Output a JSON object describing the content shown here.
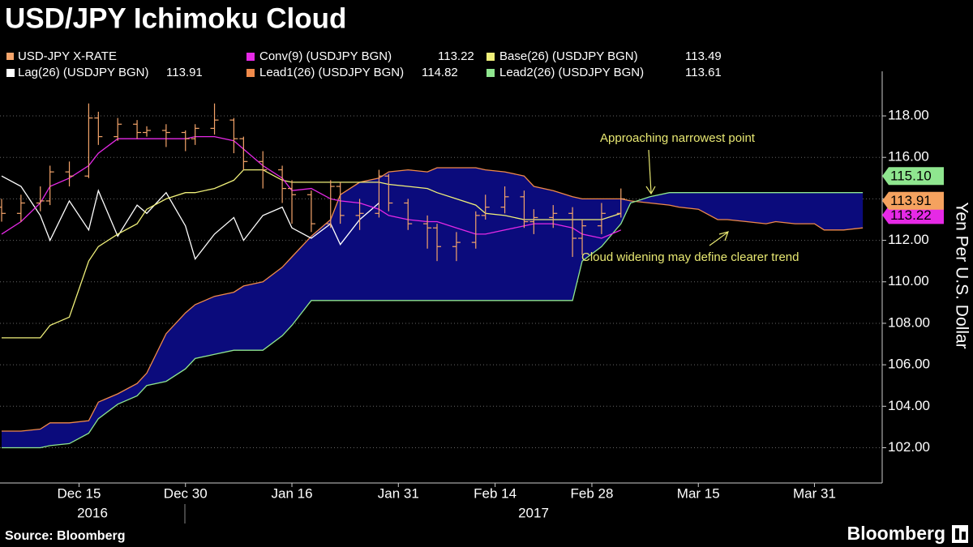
{
  "chart_data": {
    "type": "ohlc",
    "title": "USD/JPY Ichimoku Cloud",
    "y_label": "Yen Per U.S. Dollar",
    "source": "Source: Bloomberg",
    "brand": "Bloomberg",
    "x_group_labels": [
      "2016",
      "2017"
    ],
    "annotations": [
      "Approaching narrowest point",
      "Cloud widening may define clearer trend"
    ],
    "annotation_color": "#e8e872",
    "cloud_color": "#0b0b7c",
    "grid": true,
    "xlim": [
      "2016-12-05",
      "2017-04-11"
    ],
    "xticks": [
      {
        "value": "2016-12-15",
        "label": "Dec 15"
      },
      {
        "value": "2016-12-30",
        "label": "Dec 30"
      },
      {
        "value": "2017-01-16",
        "label": "Jan 16"
      },
      {
        "value": "2017-01-31",
        "label": "Jan 31"
      },
      {
        "value": "2017-02-14",
        "label": "Feb 14"
      },
      {
        "value": "2017-02-28",
        "label": "Feb 28"
      },
      {
        "value": "2017-03-15",
        "label": "Mar 15"
      },
      {
        "value": "2017-03-31",
        "label": "Mar 31"
      }
    ],
    "ylim": [
      100.3,
      120.15
    ],
    "yticks": [
      {
        "value": 102,
        "label": "102.00"
      },
      {
        "value": 104,
        "label": "104.00"
      },
      {
        "value": 106,
        "label": "106.00"
      },
      {
        "value": 108,
        "label": "108.00"
      },
      {
        "value": 110,
        "label": "110.00"
      },
      {
        "value": 112,
        "label": "112.00"
      },
      {
        "value": 114,
        "label": "114.00"
      },
      {
        "value": 116,
        "label": "116.00"
      },
      {
        "value": 118,
        "label": "118.00"
      }
    ],
    "axis_tags": [
      {
        "value": 113.22,
        "label": "113.22",
        "color": "#e629e6"
      },
      {
        "value": 113.91,
        "label": "113.91",
        "color": "#f5a25f"
      },
      {
        "value": 115.1,
        "label": "115.10",
        "color": "#8fe68f"
      }
    ],
    "x": [
      "2016-12-05",
      "2016-12-07",
      "2016-12-09",
      "2016-12-12",
      "2016-12-14",
      "2016-12-16",
      "2016-12-19",
      "2016-12-21",
      "2016-12-23",
      "2016-12-26",
      "2016-12-28",
      "2016-12-30",
      "2017-01-02",
      "2017-01-04",
      "2017-01-06",
      "2017-01-09",
      "2017-01-11",
      "2017-01-13",
      "2017-01-16",
      "2017-01-18",
      "2017-01-20",
      "2017-01-23",
      "2017-01-25",
      "2017-01-27",
      "2017-01-30",
      "2017-02-01",
      "2017-02-03",
      "2017-02-06",
      "2017-02-08",
      "2017-02-10",
      "2017-02-13",
      "2017-02-15",
      "2017-02-17",
      "2017-02-20",
      "2017-02-22",
      "2017-02-24",
      "2017-02-27",
      "2017-03-01",
      "2017-03-03",
      "2017-03-06",
      "2017-03-08",
      "2017-03-10",
      "2017-03-13",
      "2017-03-15",
      "2017-03-17",
      "2017-03-20",
      "2017-03-22",
      "2017-03-24",
      "2017-03-27",
      "2017-03-29",
      "2017-03-31",
      "2017-04-03",
      "2017-04-05",
      "2017-04-07"
    ],
    "series": [
      {
        "name": "USD-JPY X-RATE",
        "type": "ohlc",
        "color": "#f4a46a",
        "open": [
          113.6,
          113.3,
          113.8,
          113.9,
          115.3,
          115.1,
          117.9,
          117.0,
          117.6,
          117.2,
          117.3,
          117.2,
          116.9,
          117.4,
          117.8,
          116.9,
          115.8,
          115.4,
          114.5,
          114.2,
          112.8,
          114.6,
          113.2,
          113.3,
          115.1,
          113.8,
          112.8,
          112.6,
          111.7,
          111.9,
          113.2,
          113.6,
          114.1,
          112.9,
          113.1,
          113.3,
          112.1,
          112.7,
          113.3,
          null,
          null,
          null,
          null,
          null,
          null,
          null,
          null,
          null,
          null,
          null,
          null,
          null,
          null,
          null
        ],
        "high": [
          114.0,
          114.2,
          114.6,
          115.6,
          115.8,
          118.6,
          118.2,
          117.9,
          117.8,
          117.5,
          117.6,
          117.3,
          117.6,
          118.6,
          117.9,
          117.0,
          116.3,
          115.6,
          114.9,
          114.4,
          114.9,
          114.8,
          114.0,
          115.4,
          115.2,
          114.0,
          113.2,
          112.8,
          112.4,
          113.4,
          114.2,
          114.6,
          114.4,
          113.5,
          113.7,
          113.6,
          113.0,
          113.8,
          114.5,
          null,
          null,
          null,
          null,
          null,
          null,
          null,
          null,
          null,
          null,
          null,
          null,
          null,
          null,
          null
        ],
        "low": [
          112.9,
          112.9,
          113.4,
          113.7,
          114.6,
          115.0,
          116.6,
          116.8,
          116.9,
          117.0,
          116.5,
          116.3,
          116.6,
          117.1,
          116.2,
          115.4,
          114.5,
          113.8,
          112.8,
          112.4,
          112.6,
          112.8,
          112.5,
          113.1,
          113.4,
          112.5,
          111.6,
          111.0,
          111.0,
          111.6,
          113.0,
          113.3,
          112.6,
          112.3,
          112.6,
          111.2,
          111.3,
          112.3,
          113.1,
          null,
          null,
          null,
          null,
          null,
          null,
          null,
          null,
          null,
          null,
          null,
          null,
          null,
          null,
          null
        ],
        "close": [
          113.3,
          113.8,
          113.9,
          115.3,
          115.1,
          117.9,
          117.0,
          117.6,
          117.2,
          117.3,
          117.2,
          116.9,
          117.4,
          117.8,
          116.9,
          115.8,
          115.4,
          114.5,
          114.2,
          112.8,
          114.6,
          113.2,
          113.3,
          115.1,
          113.8,
          112.8,
          112.6,
          111.7,
          111.9,
          113.2,
          113.6,
          114.1,
          112.9,
          113.1,
          113.3,
          112.1,
          112.7,
          113.3,
          114.0,
          null,
          null,
          null,
          null,
          null,
          null,
          null,
          null,
          null,
          null,
          null,
          null,
          null,
          null,
          null
        ]
      },
      {
        "name": "Conv(9) (USDJPY BGN)",
        "type": "line",
        "color": "#e629e6",
        "last": 113.22,
        "values": [
          112.3,
          112.9,
          113.8,
          114.6,
          115.0,
          115.6,
          116.2,
          116.9,
          116.9,
          116.9,
          116.9,
          116.9,
          117.0,
          117.0,
          116.8,
          116.4,
          115.6,
          115.0,
          114.4,
          114.5,
          114.0,
          113.9,
          113.8,
          113.5,
          113.2,
          113.0,
          112.9,
          112.9,
          112.6,
          112.3,
          112.3,
          112.5,
          112.7,
          112.8,
          112.8,
          112.6,
          112.3,
          112.1,
          112.5,
          null,
          null,
          null,
          null,
          null,
          null,
          null,
          null,
          null,
          null,
          null,
          null,
          null,
          null,
          null
        ]
      },
      {
        "name": "Base(26) (USDJPY BGN)",
        "type": "line",
        "color": "#f0f07a",
        "last": 113.49,
        "values": [
          107.3,
          107.3,
          107.3,
          107.9,
          108.3,
          111.0,
          111.7,
          112.3,
          112.8,
          113.5,
          114.0,
          114.3,
          114.3,
          114.5,
          114.9,
          115.4,
          115.4,
          114.9,
          114.8,
          114.8,
          114.8,
          114.8,
          114.8,
          114.8,
          114.7,
          114.6,
          114.5,
          114.3,
          114.0,
          113.7,
          113.3,
          113.2,
          113.0,
          113.0,
          113.0,
          113.0,
          113.0,
          113.0,
          113.3,
          null,
          null,
          null,
          null,
          null,
          null,
          null,
          null,
          null,
          null,
          null,
          null,
          null,
          null,
          null
        ]
      },
      {
        "name": "Lag(26) (USDJPY BGN)",
        "type": "line",
        "color": "#ffffff",
        "last": 113.91,
        "values": [
          115.1,
          114.6,
          113.2,
          112.0,
          113.9,
          112.5,
          114.4,
          112.2,
          113.7,
          113.3,
          114.3,
          112.7,
          111.1,
          112.3,
          113.1,
          112.0,
          113.2,
          113.6,
          112.6,
          112.1,
          112.8,
          111.8,
          113.0,
          113.8,
          null,
          null,
          null,
          null,
          null,
          null,
          null,
          null,
          null,
          null,
          null,
          null,
          null,
          null,
          null,
          null,
          null,
          null,
          null,
          null,
          null,
          null,
          null,
          null,
          null,
          null,
          null,
          null,
          null,
          null
        ]
      },
      {
        "name": "Lead1(26) (USDJPY BGN)",
        "type": "line",
        "color": "#f08a4b",
        "last": 114.82,
        "values": [
          102.8,
          102.8,
          102.9,
          103.2,
          103.2,
          103.3,
          104.2,
          104.6,
          105.1,
          105.6,
          107.5,
          108.5,
          108.9,
          109.3,
          109.5,
          109.8,
          110.0,
          110.7,
          111.2,
          112.2,
          113.0,
          114.2,
          114.8,
          115.0,
          115.3,
          115.4,
          115.3,
          115.5,
          115.5,
          115.5,
          115.4,
          115.3,
          115.1,
          114.6,
          114.4,
          114.1,
          114.0,
          114.0,
          114.0,
          113.9,
          113.8,
          113.7,
          113.6,
          113.5,
          113.0,
          113.0,
          112.9,
          112.8,
          112.9,
          112.8,
          112.8,
          112.5,
          112.5,
          112.6
        ]
      },
      {
        "name": "Lead2(26) (USDJPY BGN)",
        "type": "line",
        "color": "#8fe68f",
        "last": 113.61,
        "values": [
          102.0,
          102.0,
          102.0,
          102.1,
          102.2,
          102.7,
          103.4,
          104.1,
          104.5,
          105.0,
          105.2,
          105.8,
          106.3,
          106.5,
          106.7,
          106.7,
          106.7,
          107.4,
          107.9,
          109.1,
          109.1,
          109.1,
          109.1,
          109.1,
          109.1,
          109.1,
          109.1,
          109.1,
          109.1,
          109.1,
          109.1,
          109.1,
          109.1,
          109.1,
          109.1,
          109.1,
          111.0,
          111.7,
          112.8,
          113.8,
          114.1,
          114.3,
          114.3,
          114.3,
          114.3,
          114.3,
          114.3,
          114.3,
          114.3,
          114.3,
          114.3,
          114.3,
          114.3,
          114.3
        ]
      }
    ]
  }
}
